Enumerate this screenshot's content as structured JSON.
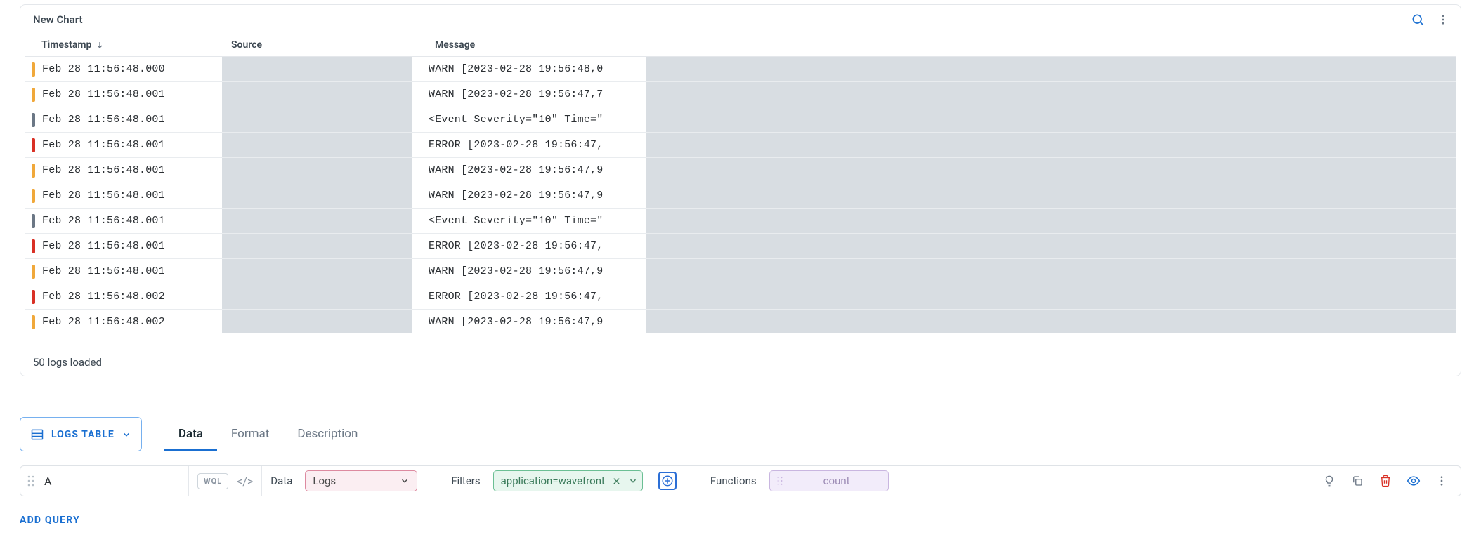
{
  "chart": {
    "title": "New Chart",
    "columns": {
      "timestamp": "Timestamp",
      "source": "Source",
      "message": "Message"
    },
    "status": "50 logs loaded",
    "rows": [
      {
        "sev_color": "#f0a83a",
        "ts": "Feb 28 11:56:48.000",
        "msg": "WARN [2023-02-28 19:56:48,0"
      },
      {
        "sev_color": "#f0a83a",
        "ts": "Feb 28 11:56:48.001",
        "msg": "WARN [2023-02-28 19:56:47,7"
      },
      {
        "sev_color": "#6b7785",
        "ts": "Feb 28 11:56:48.001",
        "msg": "<Event Severity=\"10\" Time=\""
      },
      {
        "sev_color": "#d93025",
        "ts": "Feb 28 11:56:48.001",
        "msg": "ERROR [2023-02-28 19:56:47,"
      },
      {
        "sev_color": "#f0a83a",
        "ts": "Feb 28 11:56:48.001",
        "msg": "WARN [2023-02-28 19:56:47,9"
      },
      {
        "sev_color": "#f0a83a",
        "ts": "Feb 28 11:56:48.001",
        "msg": "WARN [2023-02-28 19:56:47,9"
      },
      {
        "sev_color": "#6b7785",
        "ts": "Feb 28 11:56:48.001",
        "msg": "<Event Severity=\"10\" Time=\""
      },
      {
        "sev_color": "#d93025",
        "ts": "Feb 28 11:56:48.001",
        "msg": "ERROR [2023-02-28 19:56:47,"
      },
      {
        "sev_color": "#f0a83a",
        "ts": "Feb 28 11:56:48.001",
        "msg": "WARN [2023-02-28 19:56:47,9"
      },
      {
        "sev_color": "#d93025",
        "ts": "Feb 28 11:56:48.002",
        "msg": "ERROR [2023-02-28 19:56:47,"
      },
      {
        "sev_color": "#f0a83a",
        "ts": "Feb 28 11:56:48.002",
        "msg": "WARN [2023-02-28 19:56:47,9"
      }
    ]
  },
  "builder": {
    "viz_label": "LOGS TABLE",
    "tabs": {
      "data": "Data",
      "format": "Format",
      "description": "Description"
    },
    "active_tab": "data",
    "query_name": "A",
    "wql_badge": "WQL",
    "data_label": "Data",
    "data_source": "Logs",
    "filters_label": "Filters",
    "filter_chip": "application=wavefront",
    "functions_label": "Functions",
    "function_chip": "count",
    "add_query": "ADD QUERY"
  },
  "colors": {
    "blue": "#1a6fd1",
    "border": "#e4e7eb",
    "redact": "#d8dde2",
    "logs_chip_border": "#dd8aa0",
    "logs_chip_bg": "#fbeef2",
    "filter_chip_border": "#6bbf94",
    "filter_chip_bg": "#e7f6ee",
    "func_chip_border": "#c9b6e0",
    "func_chip_bg": "#f2ecfa"
  }
}
